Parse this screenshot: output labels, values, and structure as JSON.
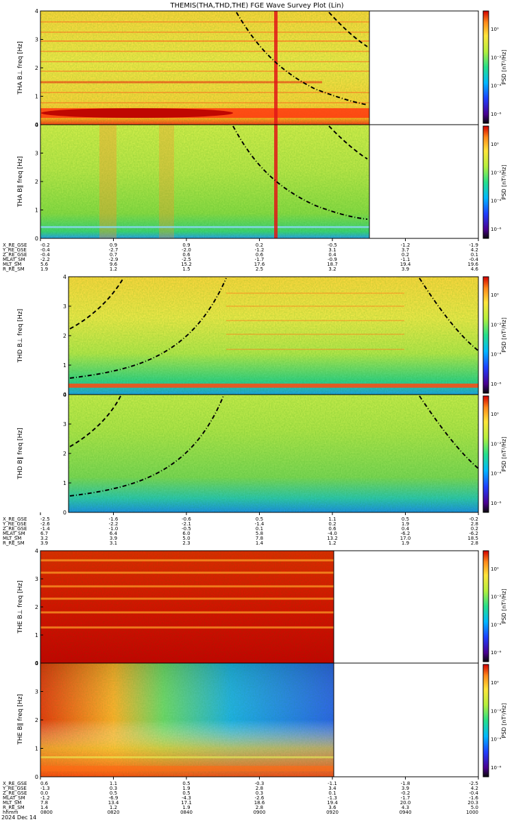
{
  "title": "THEMIS(THA,THD,THE) FGE Wave Survey Plot (Lin)",
  "footer": {
    "date": "2024 Dec 14"
  },
  "colorbar": {
    "label": "PSD [nT²/Hz]",
    "ticks": [
      "10⁰",
      "10⁻²",
      "10⁻⁴",
      "10⁻⁶"
    ]
  },
  "chart_data": [
    {
      "type": "heatmap",
      "title": "THEMIS(THA,THD,THE) FGE Wave Survey Plot (Lin)",
      "probe": "THA",
      "panels": [
        {
          "ylabel": "THA B⊥ freq [Hz]",
          "y_ticks": [
            0,
            1,
            2,
            3,
            4
          ],
          "ylim": [
            0,
            4
          ],
          "features": "Strong low-frequency band near 0.25 Hz, many narrow harmonic lines, vertical spike near 0.7 of panel width, dashed curve from top-left to right edge, dash-dot curve descending toward ~0.6 Hz"
        },
        {
          "ylabel": "THA B∥ freq [Hz]",
          "y_ticks": [
            0,
            1,
            2,
            3,
            4
          ],
          "ylim": [
            0,
            4
          ],
          "features": "Broadband green background with vertical orange bursts and vertical red spike"
        }
      ],
      "ephemeris": {
        "rows": [
          "X_RE_GSE",
          "Y_RE_GSE",
          "Z_RE_GSE",
          "MLAT_SM",
          "MLT_SM",
          "R_RE_SM"
        ],
        "values": [
          [
            "-0.2",
            "0.9",
            "0.9",
            "0.2",
            "-0.5",
            "-1.2",
            "-1.9"
          ],
          [
            "-0.4",
            "-2.7",
            "-2.0",
            "-1.2",
            "3.1",
            "3.7",
            "4.2"
          ],
          [
            "-0.4",
            "0.7",
            "0.6",
            "0.6",
            "0.4",
            "0.2",
            "0.1"
          ],
          [
            "-2.2",
            "-2.9",
            "-2.5",
            "-1.7",
            "-0.9",
            "-1.1",
            "-0.4"
          ],
          [
            "5.6",
            "9.6",
            "15.2",
            "17.6",
            "18.7",
            "19.4",
            "19.6"
          ],
          [
            "1.9",
            "1.2",
            "1.5",
            "2.5",
            "3.2",
            "3.9",
            "4.6"
          ]
        ]
      }
    },
    {
      "type": "heatmap",
      "probe": "THD",
      "panels": [
        {
          "ylabel": "THD B⊥ freq [Hz]",
          "y_ticks": [
            0,
            1,
            2,
            3,
            4
          ],
          "ylim": [
            0,
            4
          ],
          "features": "Bright line near 0.1 Hz, harmonic lines above 1.5 Hz in middle, U-shaped dash-dot curve and dashed curves"
        },
        {
          "ylabel": "THD B∥ freq [Hz]",
          "y_ticks": [
            0,
            1,
            2,
            3,
            4
          ],
          "ylim": [
            0,
            4
          ],
          "features": "Green broadband with blue low-frequency floor"
        }
      ],
      "ephemeris": {
        "rows": [
          "X_RE_GSE",
          "Y_RE_GSE",
          "Z_RE_GSE",
          "MLAT_SM",
          "MLT_SM",
          "R_RE_SM"
        ],
        "values": [
          [
            "-2.5",
            "-1.6",
            "-0.6",
            "0.5",
            "1.1",
            "0.5",
            "-0.2"
          ],
          [
            "-2.6",
            "-2.2",
            "-2.1",
            "-1.4",
            "0.2",
            "1.9",
            "2.8"
          ],
          [
            "-1.4",
            "-1.0",
            "-0.5",
            "0.1",
            "0.6",
            "0.4",
            "0.2"
          ],
          [
            "6.7",
            "6.4",
            "6.0",
            "5.8",
            "-4.0",
            "-6.2",
            "-6.2"
          ],
          [
            "3.2",
            "3.9",
            "5.0",
            "7.8",
            "13.2",
            "17.0",
            "18.5"
          ],
          [
            "3.9",
            "3.1",
            "2.3",
            "1.4",
            "1.2",
            "1.9",
            "2.8"
          ]
        ]
      }
    },
    {
      "type": "heatmap",
      "probe": "THE",
      "panels": [
        {
          "ylabel": "THE B⊥ freq [Hz]",
          "y_ticks": [
            0,
            1,
            2,
            3,
            4
          ],
          "ylim": [
            0,
            4
          ],
          "features": "Saturated red with yellow-orange horizontal harmonic bands; data ends at ~0.72 of time span"
        },
        {
          "ylabel": "THE B∥ freq [Hz]",
          "y_ticks": [
            0,
            1,
            2,
            3,
            4
          ],
          "ylim": [
            0,
            4
          ],
          "features": "Red/orange at start transitioning to green/blue with bubble-like periodic structures"
        }
      ],
      "ephemeris": {
        "rows": [
          "X_RE_GSE",
          "Y_RE_GSE",
          "Z_RE_GSE",
          "MLAT_SM",
          "MLT_SM",
          "R_RE_SM",
          "hhmm"
        ],
        "values": [
          [
            "0.6",
            "1.1",
            "0.5",
            "-0.3",
            "-1.1",
            "-1.8",
            "-2.5"
          ],
          [
            "-1.3",
            "0.3",
            "1.9",
            "2.8",
            "3.4",
            "3.9",
            "4.2"
          ],
          [
            "0.0",
            "0.5",
            "0.5",
            "0.3",
            "0.1",
            "-0.2",
            "-0.4"
          ],
          [
            "-1.2",
            "-6.9",
            "-4.3",
            "-2.6",
            "-1.3",
            "-1.7",
            "-1.6"
          ],
          [
            "7.8",
            "13.4",
            "17.1",
            "18.6",
            "19.4",
            "20.0",
            "20.3"
          ],
          [
            "1.4",
            "1.2",
            "1.9",
            "2.8",
            "3.6",
            "4.3",
            "5.0"
          ],
          [
            "0800",
            "0820",
            "0840",
            "0900",
            "0920",
            "0940",
            "1000"
          ]
        ]
      }
    }
  ]
}
